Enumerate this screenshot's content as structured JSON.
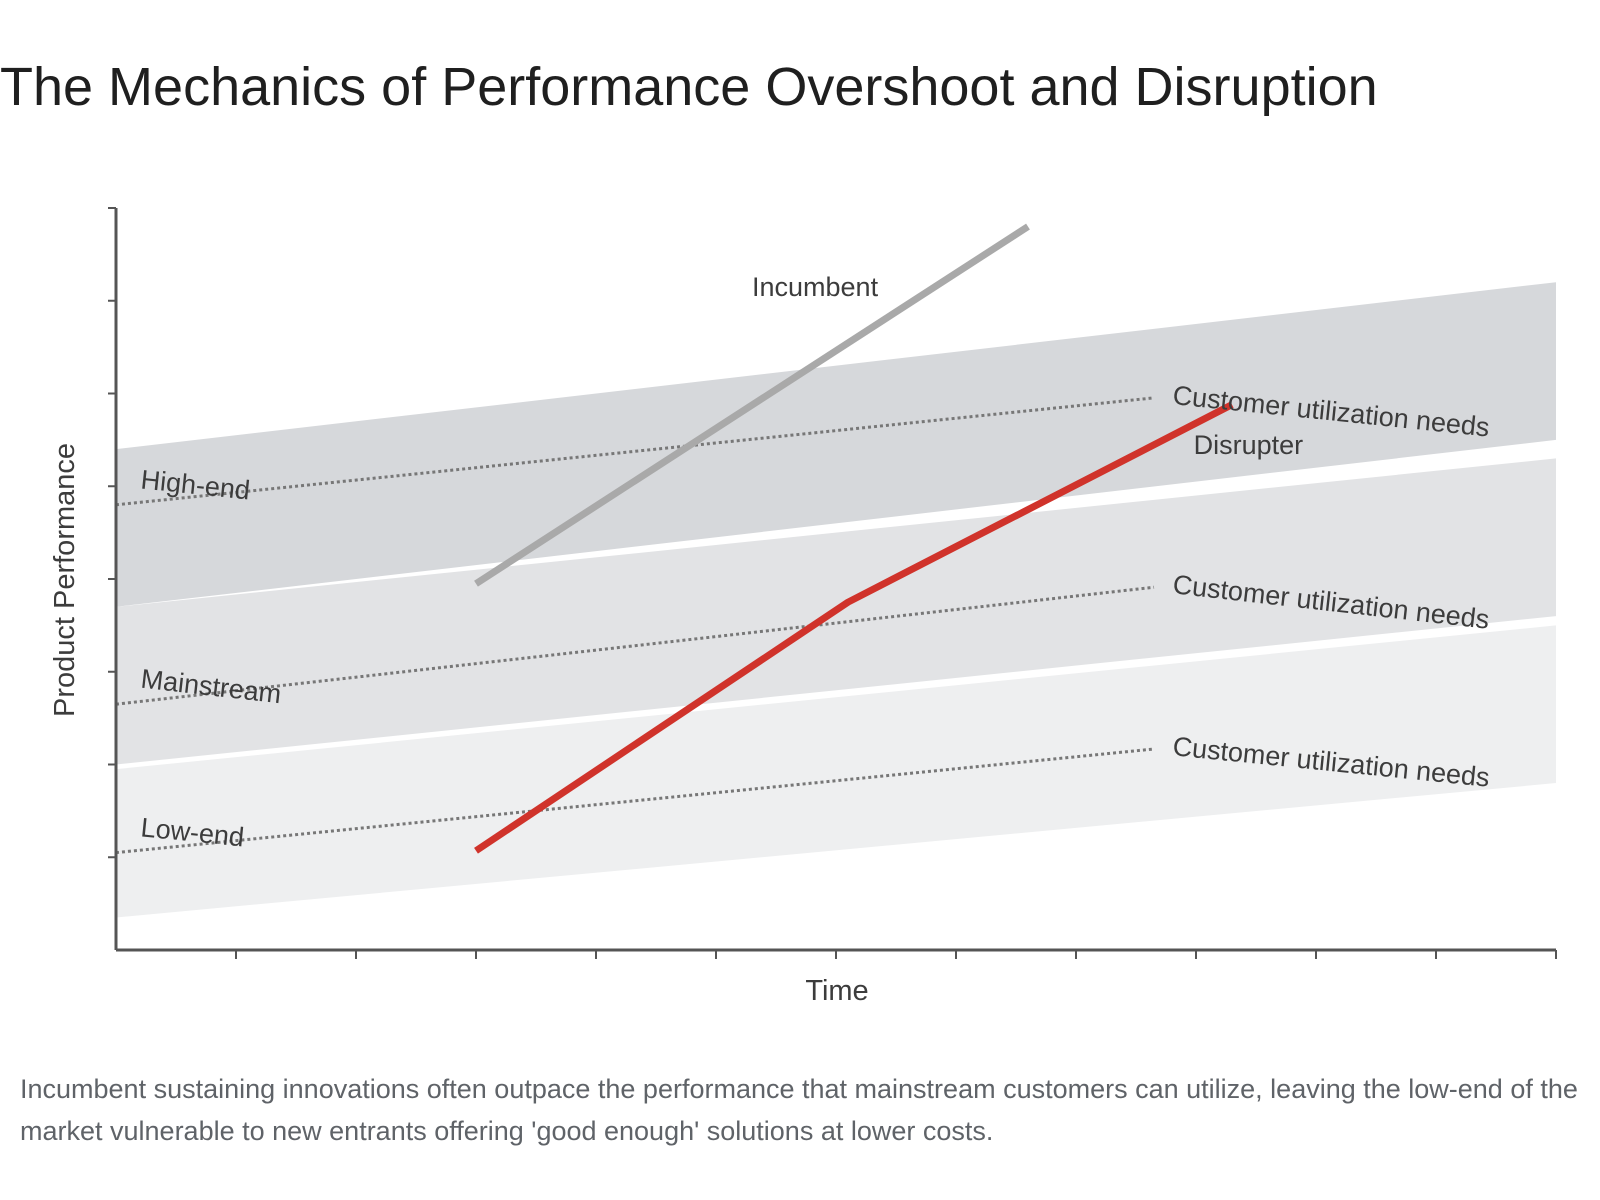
{
  "title": "The Mechanics of Performance Overshoot and Disruption",
  "caption": "Incumbent sustaining innovations often outpace the performance that mainstream customers can utilize, leaving the low-end of the market vulnerable to new entrants offering 'good enough' solutions at lower costs.",
  "colors": {
    "high_band": "#d6d8db",
    "mainstream_band": "#e2e3e5",
    "low_band": "#eeeff0",
    "incumbent": "#a9a9a9",
    "disrupter": "#d0332b",
    "axis": "#555555",
    "needs_line": "#777777"
  },
  "chart_data": {
    "type": "line",
    "xlabel": "Time",
    "ylabel": "Product Performance",
    "xlim": [
      0,
      12
    ],
    "ylim": [
      0,
      8
    ],
    "x_ticks": [
      1,
      2,
      3,
      4,
      5,
      6,
      7,
      8,
      9,
      10,
      11,
      12
    ],
    "y_ticks": [
      1,
      2,
      3,
      4,
      5,
      6,
      7,
      8
    ],
    "grid": false,
    "bands": [
      {
        "name": "High-end",
        "needs_label": "Customer utilization needs",
        "lower": [
          3.7,
          5.5
        ],
        "upper": [
          5.4,
          7.2
        ],
        "needs": [
          4.8,
          6.4
        ]
      },
      {
        "name": "Mainstream",
        "needs_label": "Customer utilization needs",
        "lower": [
          2.0,
          3.6
        ],
        "upper": [
          3.7,
          5.3
        ],
        "needs": [
          2.65,
          4.4
        ]
      },
      {
        "name": "Low-end",
        "needs_label": "Customer utilization needs",
        "lower": [
          0.35,
          1.8
        ],
        "upper": [
          1.95,
          3.5
        ],
        "needs": [
          1.05,
          2.6
        ]
      }
    ],
    "series": [
      {
        "name": "Incumbent",
        "points": [
          [
            3.0,
            3.95
          ],
          [
            7.6,
            7.8
          ]
        ]
      },
      {
        "name": "Disrupter",
        "points": [
          [
            3.0,
            1.07
          ],
          [
            6.1,
            3.75
          ],
          [
            9.3,
            5.88
          ]
        ]
      }
    ]
  }
}
